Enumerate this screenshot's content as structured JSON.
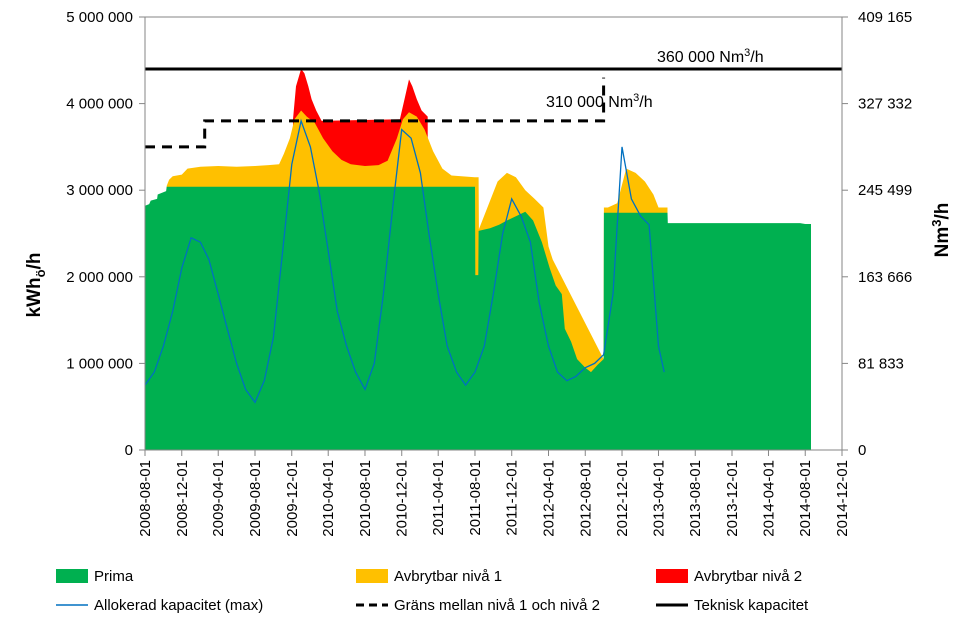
{
  "chart_data": {
    "type": "area",
    "title": "",
    "ylabel_left": "kWhö/h",
    "ylabel_left_main": "kWh",
    "ylabel_left_sub": "ö",
    "ylabel_left_tail": "/h",
    "ylabel_right": "Nm3/h",
    "ylabel_right_main": "Nm",
    "ylabel_right_sup": "3",
    "ylabel_right_tail": "/h",
    "ylim_left": [
      0,
      5000000
    ],
    "ylim_right": [
      0,
      409165
    ],
    "yticks_left": [
      "0",
      "1 000 000",
      "2 000 000",
      "3 000 000",
      "4 000 000",
      "5 000 000"
    ],
    "yticks_right": [
      "0",
      "81 833",
      "163 666",
      "245 499",
      "327 332",
      "409 165"
    ],
    "xlim": [
      "2008-08-01",
      "2014-12-01"
    ],
    "xticks": [
      "2008-08-01",
      "2008-12-01",
      "2009-04-01",
      "2009-08-01",
      "2009-12-01",
      "2010-04-01",
      "2010-08-01",
      "2010-12-01",
      "2011-04-01",
      "2011-08-01",
      "2011-12-01",
      "2012-04-01",
      "2012-08-01",
      "2012-12-01",
      "2013-04-01",
      "2013-08-01",
      "2013-12-01",
      "2014-04-01",
      "2014-08-01",
      "2014-12-01"
    ],
    "annotations": [
      {
        "text_main": "360 000 Nm",
        "sup": "3",
        "tail": "/h"
      },
      {
        "text_main": "310 000 Nm",
        "sup": "3",
        "tail": "/h"
      }
    ],
    "grid": false,
    "legend_position": "bottom",
    "series": [
      {
        "name": "Prima",
        "kind": "stacked-area",
        "color": "#00b050",
        "points": [
          [
            "2008-08-01",
            2820000
          ],
          [
            "2008-08-15",
            2840000
          ],
          [
            "2008-08-20",
            2880000
          ],
          [
            "2008-09-10",
            2900000
          ],
          [
            "2008-09-12",
            2950000
          ],
          [
            "2008-10-10",
            2990000
          ],
          [
            "2008-10-12",
            3040000
          ],
          [
            "2011-07-15",
            3040000
          ],
          [
            "2011-08-01",
            3040000
          ],
          [
            "2011-08-02",
            2020000
          ],
          [
            "2011-08-12",
            2020000
          ],
          [
            "2011-08-13",
            2530000
          ],
          [
            "2011-09-20",
            2560000
          ],
          [
            "2011-10-20",
            2600000
          ],
          [
            "2011-11-15",
            2650000
          ],
          [
            "2011-12-15",
            2700000
          ],
          [
            "2012-01-15",
            2750000
          ],
          [
            "2012-02-10",
            2650000
          ],
          [
            "2012-03-10",
            2400000
          ],
          [
            "2012-04-05",
            2100000
          ],
          [
            "2012-04-25",
            1900000
          ],
          [
            "2012-05-15",
            1800000
          ],
          [
            "2012-05-25",
            1400000
          ],
          [
            "2012-06-15",
            1250000
          ],
          [
            "2012-07-05",
            1050000
          ],
          [
            "2012-08-01",
            950000
          ],
          [
            "2012-08-20",
            900000
          ],
          [
            "2012-09-10",
            980000
          ],
          [
            "2012-10-01",
            1050000
          ],
          [
            "2012-10-02",
            2740000
          ],
          [
            "2013-04-30",
            2740000
          ],
          [
            "2013-05-01",
            2740000
          ],
          [
            "2013-05-02",
            2620000
          ],
          [
            "2014-07-15",
            2620000
          ],
          [
            "2014-08-01",
            2610000
          ],
          [
            "2014-08-20",
            2610000
          ]
        ]
      },
      {
        "name": "Avbrytbar nivå 1",
        "kind": "stacked-area",
        "color": "#ffc000",
        "points": [
          [
            "2008-10-12",
            3050000
          ],
          [
            "2008-10-20",
            3120000
          ],
          [
            "2008-11-01",
            3160000
          ],
          [
            "2008-12-01",
            3180000
          ],
          [
            "2008-12-20",
            3250000
          ],
          [
            "2009-02-01",
            3270000
          ],
          [
            "2009-04-01",
            3280000
          ],
          [
            "2009-06-01",
            3270000
          ],
          [
            "2009-08-01",
            3280000
          ],
          [
            "2009-09-15",
            3290000
          ],
          [
            "2009-10-20",
            3300000
          ],
          [
            "2009-11-05",
            3420000
          ],
          [
            "2009-11-25",
            3600000
          ],
          [
            "2009-12-10",
            3820000
          ],
          [
            "2010-01-01",
            3920000
          ],
          [
            "2010-01-20",
            3850000
          ],
          [
            "2010-02-15",
            3780000
          ],
          [
            "2010-03-15",
            3600000
          ],
          [
            "2010-04-15",
            3450000
          ],
          [
            "2010-05-15",
            3350000
          ],
          [
            "2010-06-15",
            3300000
          ],
          [
            "2010-08-01",
            3280000
          ],
          [
            "2010-09-15",
            3290000
          ],
          [
            "2010-10-15",
            3340000
          ],
          [
            "2010-11-15",
            3600000
          ],
          [
            "2010-12-05",
            3820000
          ],
          [
            "2010-12-25",
            3900000
          ],
          [
            "2011-01-20",
            3850000
          ],
          [
            "2011-02-15",
            3700000
          ],
          [
            "2011-03-15",
            3450000
          ],
          [
            "2011-04-15",
            3250000
          ],
          [
            "2011-05-15",
            3170000
          ],
          [
            "2011-07-31",
            3150000
          ],
          [
            "2011-08-13",
            3150000
          ],
          [
            "2011-08-14",
            2550000
          ],
          [
            "2011-10-15",
            3100000
          ],
          [
            "2011-11-15",
            3200000
          ],
          [
            "2011-12-15",
            3150000
          ],
          [
            "2012-01-15",
            3000000
          ],
          [
            "2012-02-15",
            2900000
          ],
          [
            "2012-03-15",
            2800000
          ],
          [
            "2012-04-01",
            2350000
          ],
          [
            "2012-04-15",
            2200000
          ],
          [
            "2012-10-01",
            1050000
          ],
          [
            "2012-10-02",
            2800000
          ],
          [
            "2012-10-15",
            2800000
          ],
          [
            "2012-11-15",
            2850000
          ],
          [
            "2012-12-15",
            3250000
          ],
          [
            "2013-01-15",
            3200000
          ],
          [
            "2013-02-15",
            3100000
          ],
          [
            "2013-03-15",
            2950000
          ],
          [
            "2013-04-01",
            2800000
          ],
          [
            "2013-05-01",
            2800000
          ]
        ]
      },
      {
        "name": "Avbrytbar nivå 2",
        "kind": "stacked-area",
        "color": "#ff0000",
        "points": [
          [
            "2009-12-05",
            3820000
          ],
          [
            "2009-12-15",
            4200000
          ],
          [
            "2010-01-01",
            4400000
          ],
          [
            "2010-01-12",
            4350000
          ],
          [
            "2010-01-25",
            4200000
          ],
          [
            "2010-02-05",
            4050000
          ],
          [
            "2010-02-20",
            3920000
          ],
          [
            "2010-03-10",
            3800000
          ],
          [
            "2010-11-25",
            3820000
          ],
          [
            "2010-12-10",
            4050000
          ],
          [
            "2010-12-25",
            4280000
          ],
          [
            "2011-01-05",
            4200000
          ],
          [
            "2011-01-20",
            4050000
          ],
          [
            "2011-02-05",
            3920000
          ],
          [
            "2011-02-25",
            3850000
          ]
        ]
      },
      {
        "name": "Allokerad kapacitet (max)",
        "kind": "line",
        "color": "#0070c0",
        "points": [
          [
            "2008-08-01",
            750000
          ],
          [
            "2008-09-01",
            900000
          ],
          [
            "2008-10-01",
            1200000
          ],
          [
            "2008-11-01",
            1600000
          ],
          [
            "2008-12-01",
            2100000
          ],
          [
            "2009-01-01",
            2450000
          ],
          [
            "2009-02-01",
            2400000
          ],
          [
            "2009-03-01",
            2200000
          ],
          [
            "2009-04-01",
            1800000
          ],
          [
            "2009-05-01",
            1400000
          ],
          [
            "2009-06-01",
            1000000
          ],
          [
            "2009-07-01",
            700000
          ],
          [
            "2009-08-01",
            550000
          ],
          [
            "2009-09-01",
            800000
          ],
          [
            "2009-10-01",
            1300000
          ],
          [
            "2009-11-01",
            2300000
          ],
          [
            "2009-12-01",
            3300000
          ],
          [
            "2010-01-01",
            3800000
          ],
          [
            "2010-02-01",
            3500000
          ],
          [
            "2010-03-01",
            3000000
          ],
          [
            "2010-04-01",
            2300000
          ],
          [
            "2010-05-01",
            1600000
          ],
          [
            "2010-06-01",
            1200000
          ],
          [
            "2010-07-01",
            900000
          ],
          [
            "2010-08-01",
            700000
          ],
          [
            "2010-09-01",
            1000000
          ],
          [
            "2010-10-01",
            1800000
          ],
          [
            "2010-11-01",
            2800000
          ],
          [
            "2010-12-01",
            3700000
          ],
          [
            "2011-01-01",
            3600000
          ],
          [
            "2011-02-01",
            3200000
          ],
          [
            "2011-03-01",
            2500000
          ],
          [
            "2011-04-01",
            1800000
          ],
          [
            "2011-05-01",
            1200000
          ],
          [
            "2011-06-01",
            900000
          ],
          [
            "2011-07-01",
            750000
          ],
          [
            "2011-08-01",
            900000
          ],
          [
            "2011-09-01",
            1200000
          ],
          [
            "2011-10-01",
            1800000
          ],
          [
            "2011-11-01",
            2500000
          ],
          [
            "2011-12-01",
            2900000
          ],
          [
            "2012-01-01",
            2700000
          ],
          [
            "2012-02-01",
            2400000
          ],
          [
            "2012-03-01",
            1700000
          ],
          [
            "2012-04-01",
            1200000
          ],
          [
            "2012-05-01",
            900000
          ],
          [
            "2012-06-01",
            800000
          ],
          [
            "2012-07-01",
            850000
          ],
          [
            "2012-08-01",
            950000
          ],
          [
            "2012-09-01",
            1000000
          ],
          [
            "2012-10-01",
            1100000
          ],
          [
            "2012-11-01",
            1800000
          ],
          [
            "2012-12-01",
            3500000
          ],
          [
            "2013-01-01",
            2900000
          ],
          [
            "2013-02-01",
            2700000
          ],
          [
            "2013-03-01",
            2600000
          ],
          [
            "2013-04-01",
            1200000
          ],
          [
            "2013-04-20",
            900000
          ]
        ]
      },
      {
        "name": "Gräns mellan nivå 1 och nivå 2",
        "kind": "dashed-step",
        "color": "#000000",
        "points": [
          [
            "2008-08-01",
            3500000
          ],
          [
            "2009-02-15",
            3500000
          ],
          [
            "2009-02-15",
            3800000
          ],
          [
            "2012-10-01",
            3800000
          ],
          [
            "2012-10-01",
            4300000
          ]
        ]
      },
      {
        "name": "Teknisk kapacitet",
        "kind": "line",
        "color": "#000000",
        "points": [
          [
            "2008-08-01",
            4400000
          ],
          [
            "2014-12-01",
            4400000
          ]
        ]
      }
    ]
  }
}
